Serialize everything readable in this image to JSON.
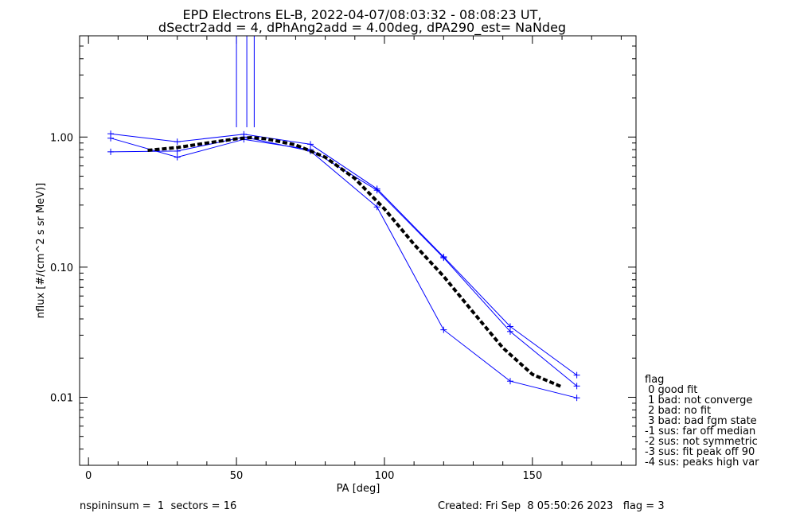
{
  "title_line1": "EPD Electrons EL-B, 2022-04-07/08:03:32 - 08:08:23 UT,",
  "title_line2": "dSectr2add = 4, dPhAng2add = 4.00deg, dPA290_est=   NaNdeg",
  "footer_left": "nspininsum =  1  sectors = 16",
  "footer_right": "Created: Fri Sep  8 05:50:26 2023   flag = 3",
  "legend": {
    "title": "flag",
    "entries": [
      " 0 good fit",
      " 1 bad: not converge",
      " 2 bad: no fit",
      " 3 bad: bad fgm state",
      "-1 sus: far off median",
      "-2 sus: not symmetric",
      "-3 sus: fit peak off 90",
      "-4 sus: peaks high var"
    ]
  },
  "colors": {
    "data": "#0000ff",
    "fit": "#000000",
    "axis": "#000000"
  },
  "chart_data": {
    "type": "line",
    "xlabel": "PA [deg]",
    "ylabel": "nflux [#/(cm^2 s sr MeV)]",
    "xlim": [
      -3,
      185
    ],
    "ylim": [
      0.003,
      6.0
    ],
    "yscale": "log",
    "xticks": [
      0,
      50,
      100,
      150
    ],
    "xtick_labels": [
      "0",
      "50",
      "100",
      "150"
    ],
    "yticks": [
      0.01,
      0.1,
      1.0
    ],
    "ytick_labels": [
      "0.01",
      "0.10",
      "1.00"
    ],
    "series": [
      {
        "values_x": [
          7.5,
          30,
          52.5,
          75,
          97.5,
          120,
          142.5,
          165
        ],
        "values_y": [
          1.06,
          0.92,
          1.05,
          0.88,
          0.4,
          0.12,
          0.035,
          0.0148
        ]
      },
      {
        "values_x": [
          7.5,
          30,
          52.5,
          75,
          97.5,
          120,
          142.5,
          165
        ],
        "values_y": [
          0.98,
          0.7,
          0.96,
          0.8,
          0.39,
          0.118,
          0.032,
          0.0122
        ]
      },
      {
        "values_x": [
          7.5,
          30,
          52.5,
          75,
          97.5,
          120,
          142.5,
          165
        ],
        "values_y": [
          0.77,
          0.78,
          1.0,
          0.78,
          0.29,
          0.033,
          0.0133,
          0.0099
        ]
      }
    ],
    "fit": {
      "x": [
        20,
        30,
        40,
        50,
        55,
        60,
        70,
        80,
        90,
        100,
        110,
        120,
        130,
        140,
        150,
        160
      ],
      "y": [
        0.79,
        0.83,
        0.9,
        0.97,
        0.99,
        0.97,
        0.87,
        0.7,
        0.48,
        0.28,
        0.15,
        0.085,
        0.045,
        0.024,
        0.015,
        0.012
      ]
    },
    "vertical_lines_x": [
      50,
      53.5,
      56
    ]
  }
}
